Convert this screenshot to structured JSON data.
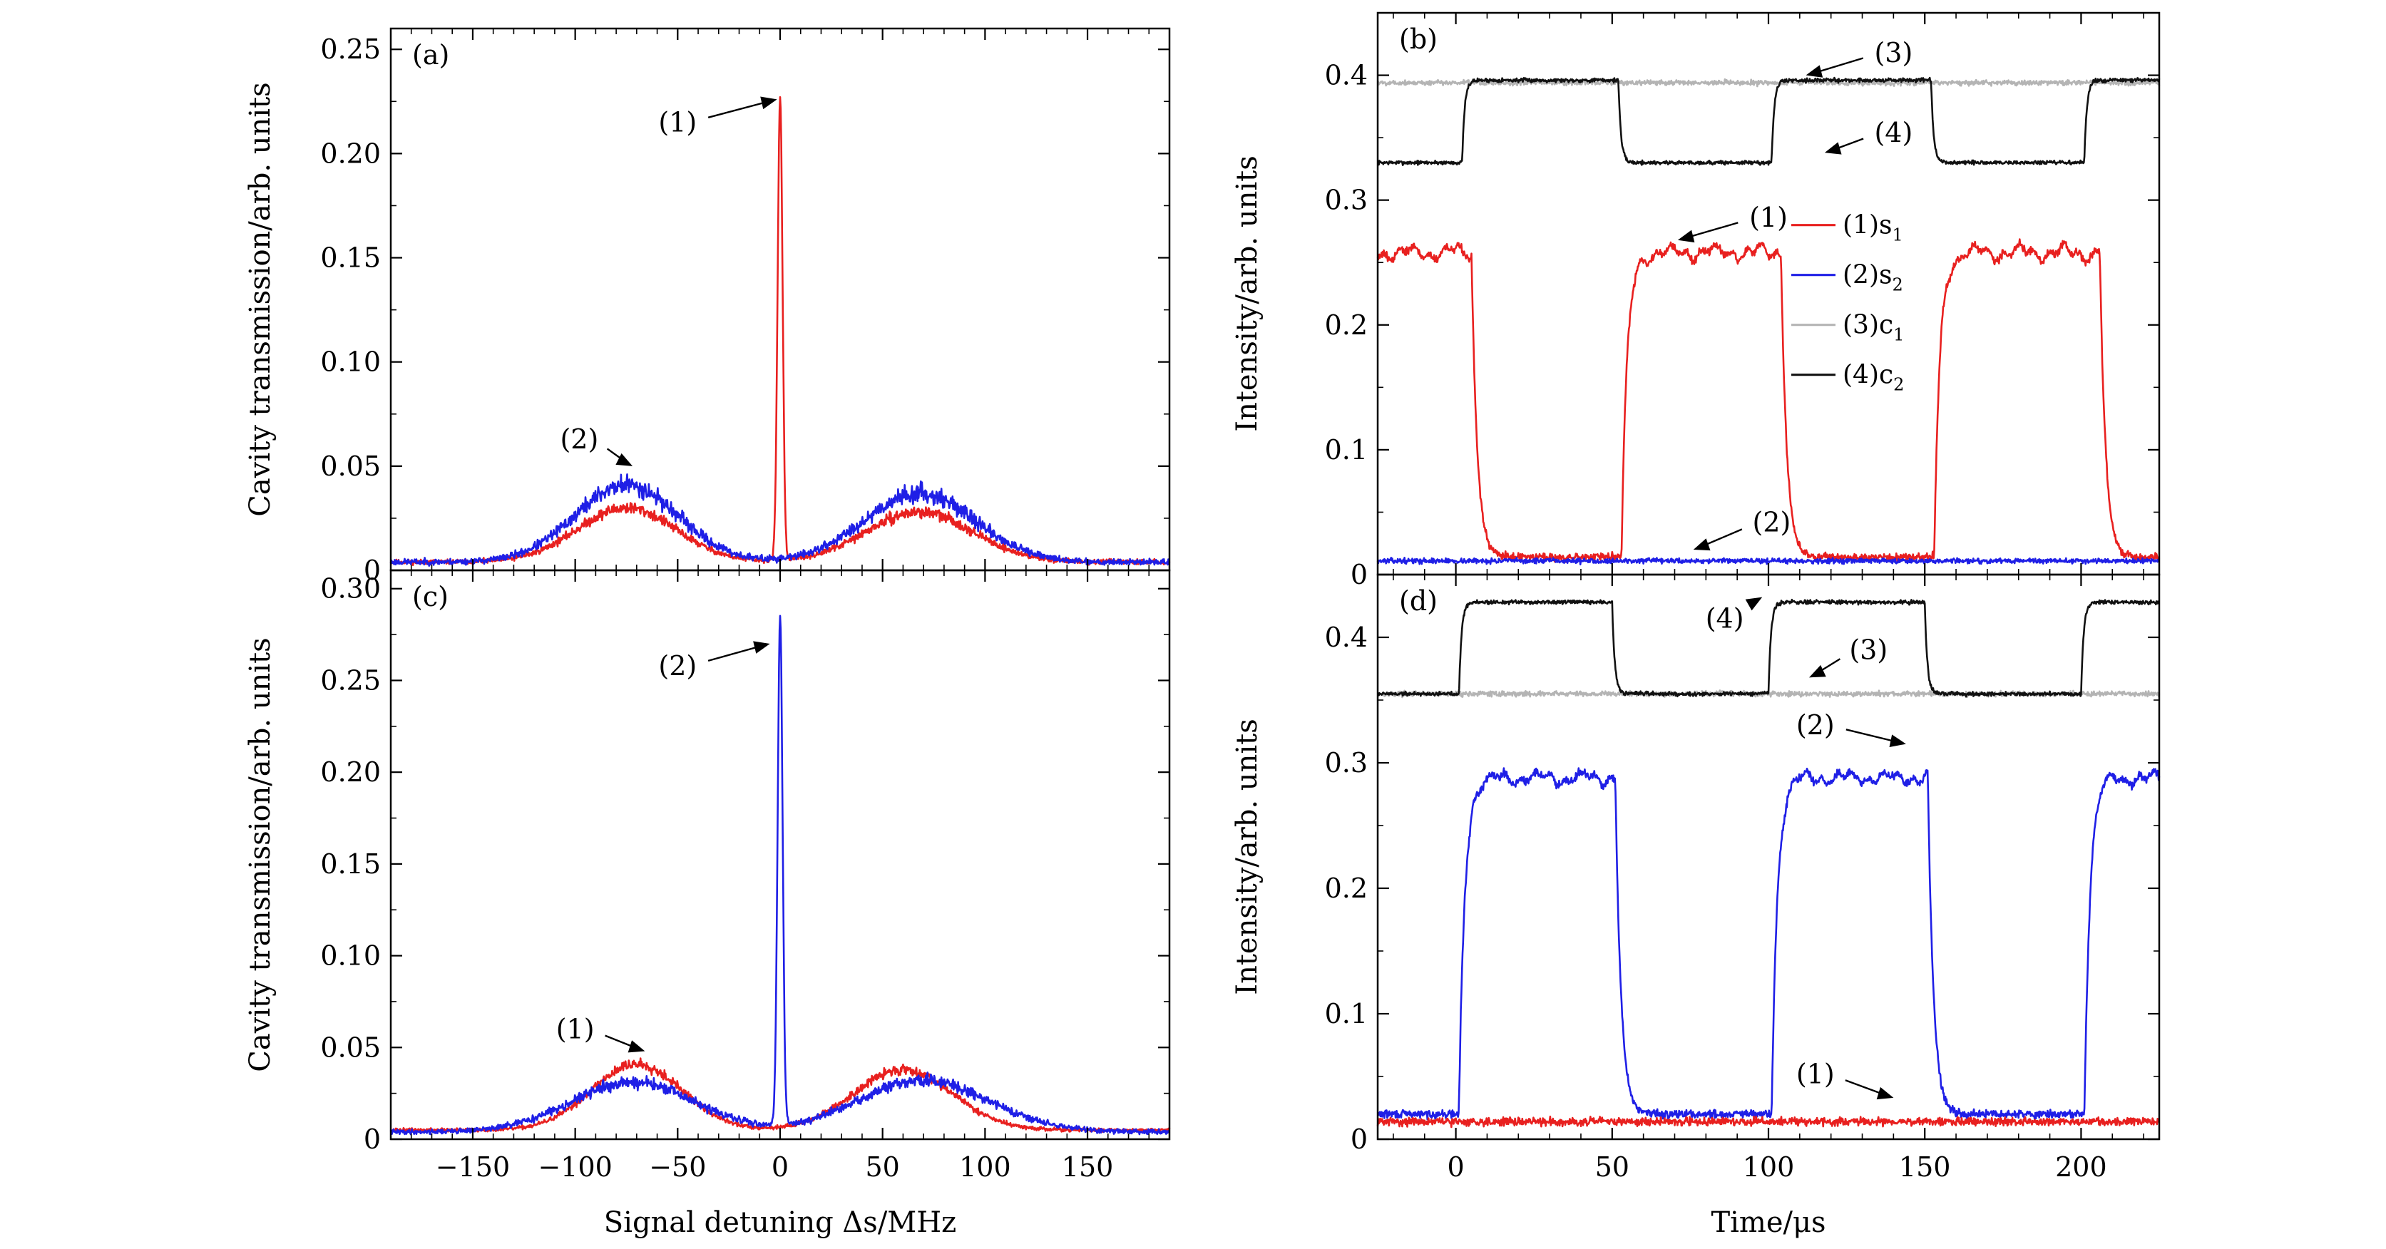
{
  "colors": {
    "red": "#e8201f",
    "blue": "#1f1fe6",
    "gray": "#b4b4b4",
    "black": "#111111",
    "axis": "#000000"
  },
  "chart_data": [
    {
      "id": "a",
      "panel_label": "(a)",
      "type": "line",
      "ylabel": "Cavity transmission/arb. units",
      "xlabel": "",
      "xlim": [
        -190,
        190
      ],
      "ylim": [
        0,
        0.26
      ],
      "xticks": [
        -150,
        -100,
        -50,
        0,
        50,
        100,
        150
      ],
      "xtick_labels": [
        "",
        "",
        "",
        "",
        "",
        "",
        ""
      ],
      "yticks": [
        0,
        0.05,
        0.1,
        0.15,
        0.2,
        0.25
      ],
      "ytick_labels": [
        "0",
        "0.05",
        "0.10",
        "0.15",
        "0.20",
        "0.25"
      ],
      "series": [
        {
          "name": "red",
          "color": "#e8201f",
          "baseline": 0.004,
          "noise": 0.0035,
          "seed": 11,
          "peaks": [
            {
              "center": -75,
              "height": 0.026,
              "width": 24
            },
            {
              "center": 68,
              "height": 0.024,
              "width": 26
            }
          ],
          "spike": {
            "center": 0,
            "height": 0.222,
            "width": 1.2
          }
        },
        {
          "name": "blue",
          "color": "#1f1fe6",
          "baseline": 0.004,
          "noise": 0.0045,
          "seed": 23,
          "peaks": [
            {
              "center": -75,
              "height": 0.037,
              "width": 25
            },
            {
              "center": 68,
              "height": 0.033,
              "width": 27
            }
          ],
          "spike": null
        }
      ],
      "annotations": [
        {
          "text": "(1)",
          "x": -50,
          "y": 0.215,
          "tx": -1.5,
          "ty": 0.226
        },
        {
          "text": "(2)",
          "x": -98,
          "y": 0.063,
          "tx": -72,
          "ty": 0.05
        }
      ]
    },
    {
      "id": "c",
      "panel_label": "(c)",
      "type": "line",
      "ylabel": "Cavity transmission/arb. units",
      "xlabel": "Signal detuning Δs/MHz",
      "xlim": [
        -190,
        190
      ],
      "ylim": [
        0,
        0.31
      ],
      "xticks": [
        -150,
        -100,
        -50,
        0,
        50,
        100,
        150
      ],
      "xtick_labels": [
        "−150",
        "−100",
        "−50",
        "0",
        "50",
        "100",
        "150"
      ],
      "yticks": [
        0,
        0.05,
        0.1,
        0.15,
        0.2,
        0.25,
        0.3
      ],
      "ytick_labels": [
        "0",
        "0.05",
        "0.10",
        "0.15",
        "0.20",
        "0.25",
        "0.30"
      ],
      "series": [
        {
          "name": "red",
          "color": "#e8201f",
          "baseline": 0.005,
          "noise": 0.003,
          "seed": 37,
          "peaks": [
            {
              "center": -70,
              "height": 0.036,
              "width": 22
            },
            {
              "center": 60,
              "height": 0.033,
              "width": 24
            }
          ],
          "spike": null
        },
        {
          "name": "blue",
          "color": "#1f1fe6",
          "baseline": 0.004,
          "noise": 0.004,
          "seed": 41,
          "peaks": [
            {
              "center": -72,
              "height": 0.027,
              "width": 30
            },
            {
              "center": 70,
              "height": 0.028,
              "width": 32
            }
          ],
          "spike": {
            "center": 0,
            "height": 0.277,
            "width": 1.2
          }
        }
      ],
      "annotations": [
        {
          "text": "(2)",
          "x": -50,
          "y": 0.258,
          "tx": -5,
          "ty": 0.27
        },
        {
          "text": "(1)",
          "x": -100,
          "y": 0.06,
          "tx": -66,
          "ty": 0.048
        }
      ]
    },
    {
      "id": "b",
      "panel_label": "(b)",
      "type": "line",
      "ylabel": "Intensity/arb. units",
      "xlabel": "",
      "xlim": [
        -25,
        225
      ],
      "ylim": [
        0,
        0.45
      ],
      "xticks": [
        0,
        50,
        100,
        150,
        200
      ],
      "xtick_labels": [
        "",
        "",
        "",
        "",
        ""
      ],
      "yticks": [
        0,
        0.1,
        0.2,
        0.3,
        0.4
      ],
      "ytick_labels": [
        "0",
        "0.1",
        "0.2",
        "0.3",
        "0.4"
      ],
      "legend": {
        "location": "center-right",
        "entries": [
          {
            "label": "(1)s",
            "sub": "1",
            "color": "#e8201f"
          },
          {
            "label": "(2)s",
            "sub": "2",
            "color": "#1f1fe6"
          },
          {
            "label": "(3)c",
            "sub": "1",
            "color": "#b4b4b4"
          },
          {
            "label": "(4)c",
            "sub": "2",
            "color": "#111111"
          }
        ]
      },
      "series": [
        {
          "name": "(3)c1",
          "color": "#b4b4b4",
          "kind": "flat",
          "level": 0.394,
          "noise": 0.0025,
          "seed": 5
        },
        {
          "name": "(4)c2",
          "color": "#111111",
          "kind": "square",
          "low": 0.33,
          "high": 0.396,
          "edges": [
            2,
            52,
            101,
            152,
            201
          ],
          "start_high": false,
          "tau": 0.8,
          "noise": 0.002,
          "seed": 7
        },
        {
          "name": "(1)s1",
          "color": "#e8201f",
          "kind": "square",
          "low": 0.014,
          "high": 0.258,
          "edges": [
            5,
            53,
            104,
            153,
            206
          ],
          "start_high": true,
          "tau": 1.8,
          "noise": 0.004,
          "wobble": 0.007,
          "seed": 9
        },
        {
          "name": "(2)s2",
          "color": "#1f1fe6",
          "kind": "flat",
          "level": 0.011,
          "noise": 0.0025,
          "seed": 13
        }
      ],
      "annotations": [
        {
          "text": "(3)",
          "x": 140,
          "y": 0.418,
          "tx": 112,
          "ty": 0.4
        },
        {
          "text": "(4)",
          "x": 140,
          "y": 0.354,
          "tx": 118,
          "ty": 0.338
        },
        {
          "text": "(1)",
          "x": 100,
          "y": 0.286,
          "tx": 71,
          "ty": 0.268
        },
        {
          "text": "(2)",
          "x": 101,
          "y": 0.042,
          "tx": 76,
          "ty": 0.02
        }
      ]
    },
    {
      "id": "d",
      "panel_label": "(d)",
      "type": "line",
      "ylabel": "Intensity/arb. units",
      "xlabel": "Time/μs",
      "xlim": [
        -25,
        225
      ],
      "ylim": [
        0,
        0.45
      ],
      "xticks": [
        0,
        50,
        100,
        150,
        200
      ],
      "xtick_labels": [
        "0",
        "50",
        "100",
        "150",
        "200"
      ],
      "yticks": [
        0,
        0.1,
        0.2,
        0.3,
        0.4
      ],
      "ytick_labels": [
        "0",
        "0.1",
        "0.2",
        "0.3",
        "0.4"
      ],
      "series": [
        {
          "name": "(3)c1",
          "color": "#b4b4b4",
          "kind": "flat",
          "level": 0.355,
          "noise": 0.0025,
          "seed": 17
        },
        {
          "name": "(4)c2",
          "color": "#111111",
          "kind": "square",
          "low": 0.355,
          "high": 0.428,
          "edges": [
            1,
            50,
            100,
            150,
            200
          ],
          "start_high": false,
          "tau": 0.8,
          "noise": 0.002,
          "seed": 19
        },
        {
          "name": "(2)s2",
          "color": "#1f1fe6",
          "kind": "square",
          "low": 0.02,
          "high": 0.288,
          "edges": [
            1,
            51,
            101,
            151,
            201
          ],
          "start_high": false,
          "tau": 1.8,
          "noise": 0.004,
          "wobble": 0.006,
          "seed": 29
        },
        {
          "name": "(1)s1",
          "color": "#e8201f",
          "kind": "flat",
          "level": 0.014,
          "noise": 0.004,
          "seed": 31
        }
      ],
      "annotations": [
        {
          "text": "(4)",
          "x": 86,
          "y": 0.415,
          "tx": 98,
          "ty": 0.432
        },
        {
          "text": "(3)",
          "x": 132,
          "y": 0.39,
          "tx": 113,
          "ty": 0.368
        },
        {
          "text": "(2)",
          "x": 115,
          "y": 0.33,
          "tx": 144,
          "ty": 0.315
        },
        {
          "text": "(1)",
          "x": 115,
          "y": 0.052,
          "tx": 140,
          "ty": 0.033
        }
      ]
    }
  ]
}
